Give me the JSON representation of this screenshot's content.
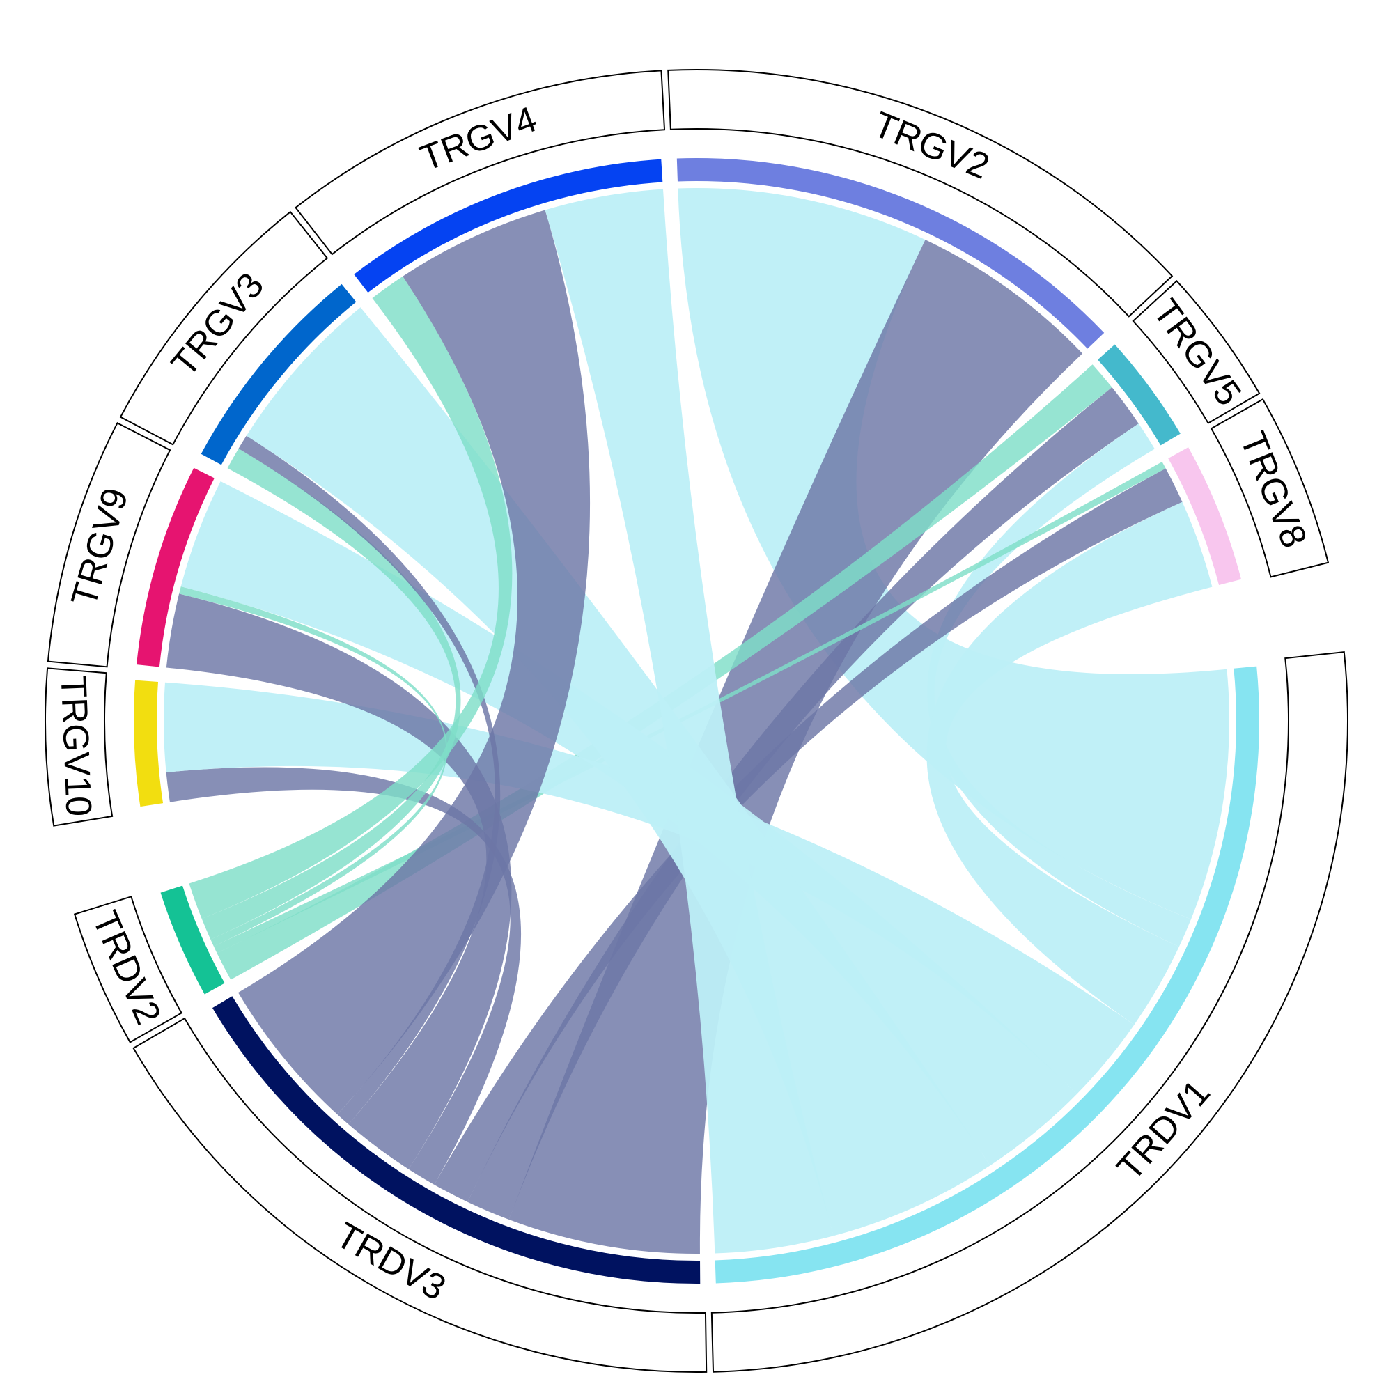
{
  "chart_data": {
    "type": "chord",
    "title": "",
    "sectors": [
      {
        "name": "TRGV2",
        "value": 30,
        "color": "#6E7FE0",
        "group": "TRGV"
      },
      {
        "name": "TRGV5",
        "value": 7,
        "color": "#44B9CC",
        "group": "TRGV"
      },
      {
        "name": "TRGV8",
        "value": 9,
        "color": "#F8C6EE",
        "group": "TRGV"
      },
      {
        "name": "TRDV1",
        "value": 58,
        "color": "#86E4F1",
        "group": "TRDV"
      },
      {
        "name": "TRDV3",
        "value": 37,
        "color": "#001260",
        "group": "TRDV"
      },
      {
        "name": "TRDV2",
        "value": 7,
        "color": "#14C295",
        "group": "TRDV"
      },
      {
        "name": "TRGV10",
        "value": 8,
        "color": "#F2DE10",
        "group": "TRGV"
      },
      {
        "name": "TRGV9",
        "value": 13,
        "color": "#E61470",
        "group": "TRGV"
      },
      {
        "name": "TRGV3",
        "value": 14,
        "color": "#0066CC",
        "group": "TRGV"
      },
      {
        "name": "TRGV4",
        "value": 21,
        "color": "#0543F2",
        "group": "TRGV"
      }
    ],
    "links": [
      {
        "from": "TRGV2",
        "to": "TRDV1",
        "value": 17
      },
      {
        "from": "TRGV2",
        "to": "TRDV3",
        "value": 13
      },
      {
        "from": "TRGV5",
        "to": "TRDV2",
        "value": 2
      },
      {
        "from": "TRGV5",
        "to": "TRDV3",
        "value": 3
      },
      {
        "from": "TRGV5",
        "to": "TRDV1",
        "value": 2
      },
      {
        "from": "TRGV8",
        "to": "TRDV2",
        "value": 0.5
      },
      {
        "from": "TRGV8",
        "to": "TRDV3",
        "value": 2.5
      },
      {
        "from": "TRGV8",
        "to": "TRDV1",
        "value": 6
      },
      {
        "from": "TRGV10",
        "to": "TRDV3",
        "value": 2
      },
      {
        "from": "TRGV10",
        "to": "TRDV1",
        "value": 6
      },
      {
        "from": "TRGV9",
        "to": "TRDV3",
        "value": 5
      },
      {
        "from": "TRGV9",
        "to": "TRDV2",
        "value": 0.5
      },
      {
        "from": "TRGV9",
        "to": "TRDV1",
        "value": 7.5
      },
      {
        "from": "TRGV3",
        "to": "TRDV2",
        "value": 1.5
      },
      {
        "from": "TRGV3",
        "to": "TRDV3",
        "value": 1
      },
      {
        "from": "TRGV3",
        "to": "TRDV1",
        "value": 11.5
      },
      {
        "from": "TRGV4",
        "to": "TRDV2",
        "value": 2.5
      },
      {
        "from": "TRGV4",
        "to": "TRDV3",
        "value": 10.5
      },
      {
        "from": "TRGV4",
        "to": "TRDV1",
        "value": 8
      }
    ],
    "link_colors": {
      "TRDV1": "#BDEFF7",
      "TRDV3": "#6C76A6",
      "TRDV2": "#7FDEC8"
    }
  }
}
